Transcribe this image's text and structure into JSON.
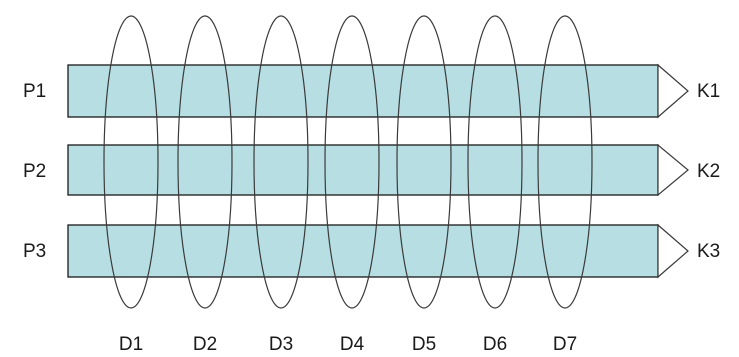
{
  "colors": {
    "bar_fill": "#b7dfe3",
    "bar_stroke": "#1a1a1a",
    "ellipse_stroke": "#3a3a3a",
    "text": "#1a1a1a"
  },
  "rows": [
    {
      "left_label": "P1",
      "right_label": "K1"
    },
    {
      "left_label": "P2",
      "right_label": "K2"
    },
    {
      "left_label": "P3",
      "right_label": "K3"
    }
  ],
  "columns": [
    {
      "label": "D1"
    },
    {
      "label": "D2"
    },
    {
      "label": "D3"
    },
    {
      "label": "D4"
    },
    {
      "label": "D5"
    },
    {
      "label": "D6"
    },
    {
      "label": "D7"
    }
  ]
}
